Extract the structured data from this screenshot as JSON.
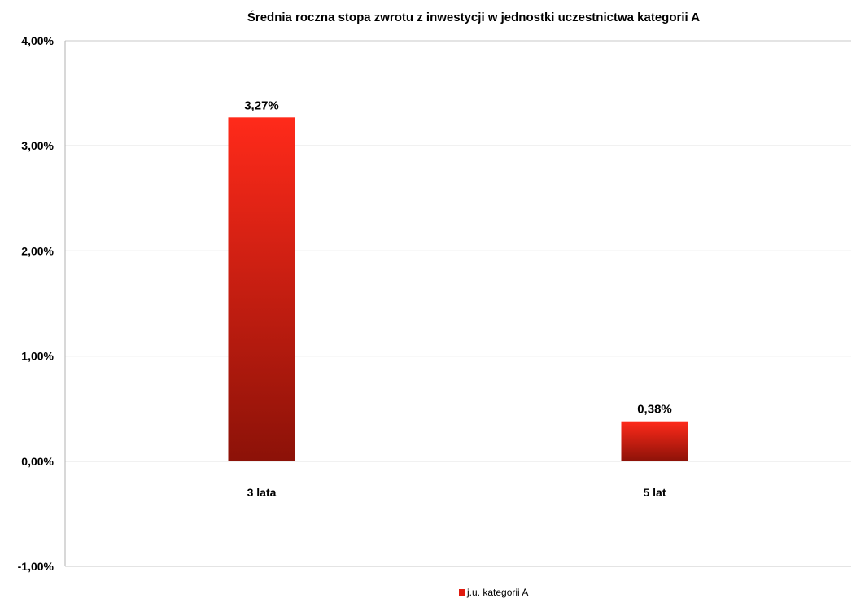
{
  "chart_data": {
    "type": "bar",
    "title": "Średnia roczna stopa zwrotu z inwestycji w jednostki uczestnictwa kategorii A",
    "xlabel": "",
    "ylabel": "",
    "categories": [
      "3 lata",
      "5 lat"
    ],
    "series": [
      {
        "name": "j.u. kategorii A",
        "values": [
          3.27,
          0.38
        ],
        "labels": [
          "3,27%",
          "0,38%"
        ]
      }
    ],
    "ylim": [
      -1,
      4
    ],
    "yticks": [
      4,
      3,
      2,
      1,
      0,
      -1
    ],
    "ytick_labels": [
      "4,00%",
      "3,00%",
      "2,00%",
      "1,00%",
      "0,00%",
      "-1,00%"
    ],
    "grid": true,
    "legend_position": "bottom",
    "colors": {
      "bar_top": "#ff2a1a",
      "bar_bottom": "#8c1208",
      "grid": "#c8c8c8",
      "axis": "#b0b0b0",
      "legend_swatch": "#e01a0e"
    }
  }
}
